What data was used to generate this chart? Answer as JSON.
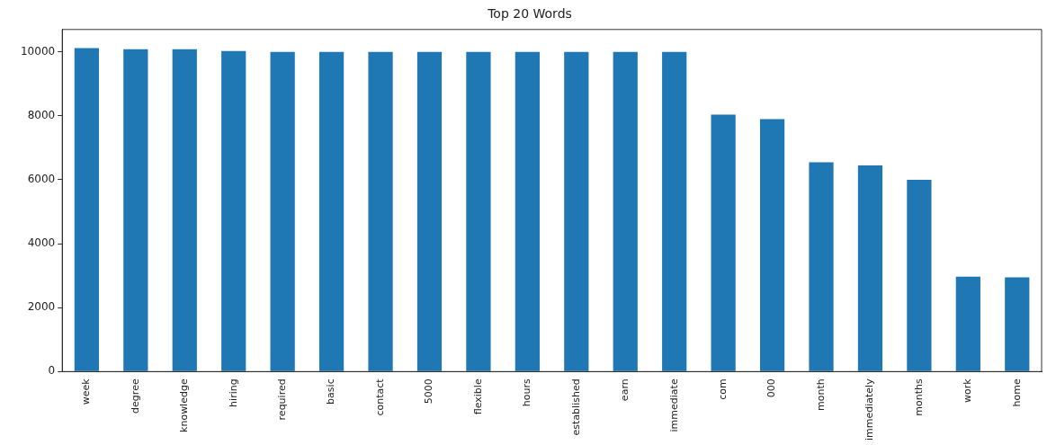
{
  "chart_data": {
    "type": "bar",
    "title": "Top 20 Words",
    "categories": [
      "week",
      "degree",
      "knowledge",
      "hiring",
      "required",
      "basic",
      "contact",
      "5000",
      "flexible",
      "hours",
      "established",
      "earn",
      "immediate",
      "com",
      "000",
      "month",
      "immediately",
      "months",
      "work",
      "home"
    ],
    "values": [
      10120,
      10080,
      10080,
      10030,
      10000,
      10000,
      10000,
      10000,
      10000,
      10000,
      10000,
      10000,
      10000,
      8040,
      7900,
      6550,
      6450,
      6000,
      2970,
      2950
    ],
    "color": "#1f77b4",
    "ylim": [
      0,
      10700
    ],
    "yticks": [
      0,
      2000,
      4000,
      6000,
      8000,
      10000
    ],
    "grid": false,
    "legend": false
  }
}
